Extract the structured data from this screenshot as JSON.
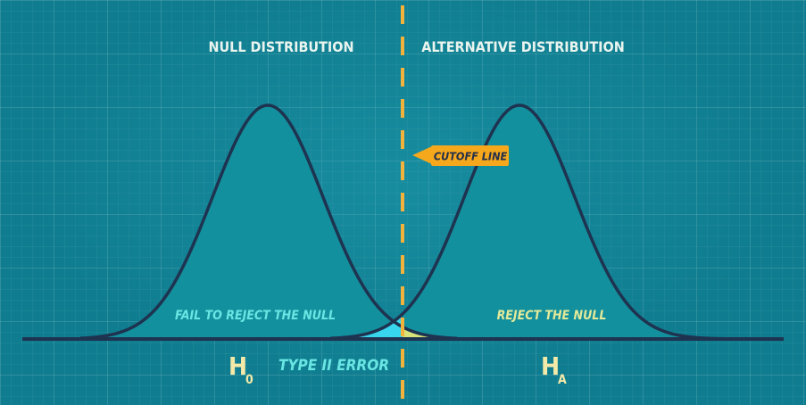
{
  "labels": {
    "null_title": "NULL DISTRIBUTION",
    "alt_title": "ALTERNATIVE DISTRIBUTION",
    "cutoff": "CUTOFF LINE",
    "fail_reject": "FAIL TO REJECT THE NULL",
    "reject": "REJECT THE NULL",
    "type2": "TYPE II ERROR",
    "h0_main": "H",
    "h0_sub": "0",
    "ha_main": "H",
    "ha_sub": "A"
  },
  "colors": {
    "background": "#0f7d8f",
    "curve_fill": "#13909d",
    "curve_stroke": "#1e3350",
    "type2_area": "#37d6ee",
    "alpha_area": "#d6e27a",
    "cutoff_line": "#f2b23c",
    "cutoff_tag": "#f6a81c",
    "label_text": "#e9f4ef",
    "italic_text": "#69e6e3",
    "reject_text": "#e3ea9a",
    "hypothesis_text": "#f3e9a8"
  }
}
